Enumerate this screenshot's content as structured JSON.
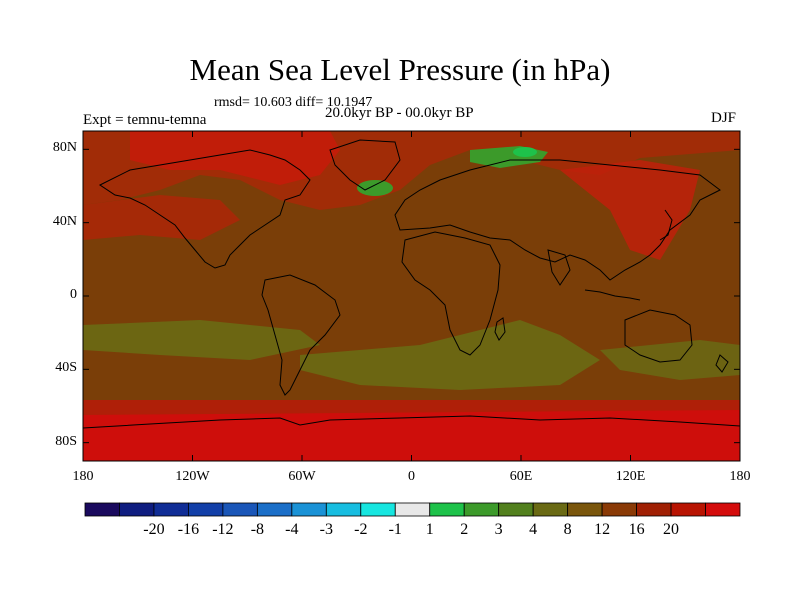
{
  "title": "Mean Sea Level Pressure (in hPa)",
  "stats": "rmsd= 10.603 diff= 10.1947",
  "experiment": "Expt = temnu-temna",
  "period": "20.0kyr BP - 00.0kyr BP",
  "season": "DJF",
  "map": {
    "lat_ticks": [
      "80N",
      "40N",
      "0",
      "40S",
      "80S"
    ],
    "lat_values": [
      80,
      40,
      0,
      -40,
      -80
    ],
    "lon_ticks": [
      "180",
      "120W",
      "60W",
      "0",
      "60E",
      "120E",
      "180"
    ],
    "lon_values": [
      -180,
      -120,
      -60,
      0,
      60,
      120,
      180
    ],
    "lat_range": [
      -90,
      90
    ],
    "lon_range": [
      -180,
      180
    ]
  },
  "colorbar": {
    "labels": [
      "-20",
      "-16",
      "-12",
      "-8",
      "-4",
      "-3",
      "-2",
      "-1",
      "1",
      "2",
      "3",
      "4",
      "8",
      "12",
      "16",
      "20"
    ],
    "colors": [
      "#1a0a5e",
      "#0f1d80",
      "#102d96",
      "#123fa8",
      "#1a56b8",
      "#1b6fc8",
      "#1a92d6",
      "#17bde0",
      "#17e6e0",
      "#e8e8e8",
      "#1ec24a",
      "#3c9a2a",
      "#52801e",
      "#6a6a14",
      "#7a560c",
      "#8a3a06",
      "#a02004",
      "#b81402",
      "#d40c0c"
    ]
  },
  "field_colors": {
    "background": "#7a3e08",
    "band_red": "#b81a08",
    "band_olive": "#6a6a14",
    "green_high": "#1ec24a"
  }
}
